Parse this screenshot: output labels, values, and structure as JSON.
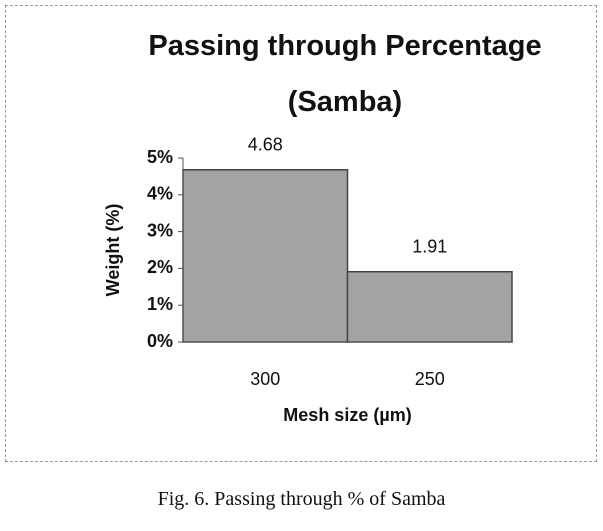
{
  "chart_data": {
    "type": "bar",
    "title": "Passing through Percentage (Samba)",
    "categories": [
      "300",
      "250"
    ],
    "values": [
      4.68,
      1.91
    ],
    "value_labels": [
      "4.68",
      "1.91"
    ],
    "color": "#a3a3a3",
    "x_label": "Mesh size (µm)",
    "y_label": "Weight (%)",
    "ylim": [
      0,
      5
    ],
    "yticks": [
      {
        "value": 0,
        "label": "0%"
      },
      {
        "value": 1,
        "label": "1%"
      },
      {
        "value": 2,
        "label": "2%"
      },
      {
        "value": 3,
        "label": "3%"
      },
      {
        "value": 4,
        "label": "4%"
      },
      {
        "value": 5,
        "label": "5%"
      }
    ]
  },
  "caption": "Fig. 6. Passing through % of Samba"
}
